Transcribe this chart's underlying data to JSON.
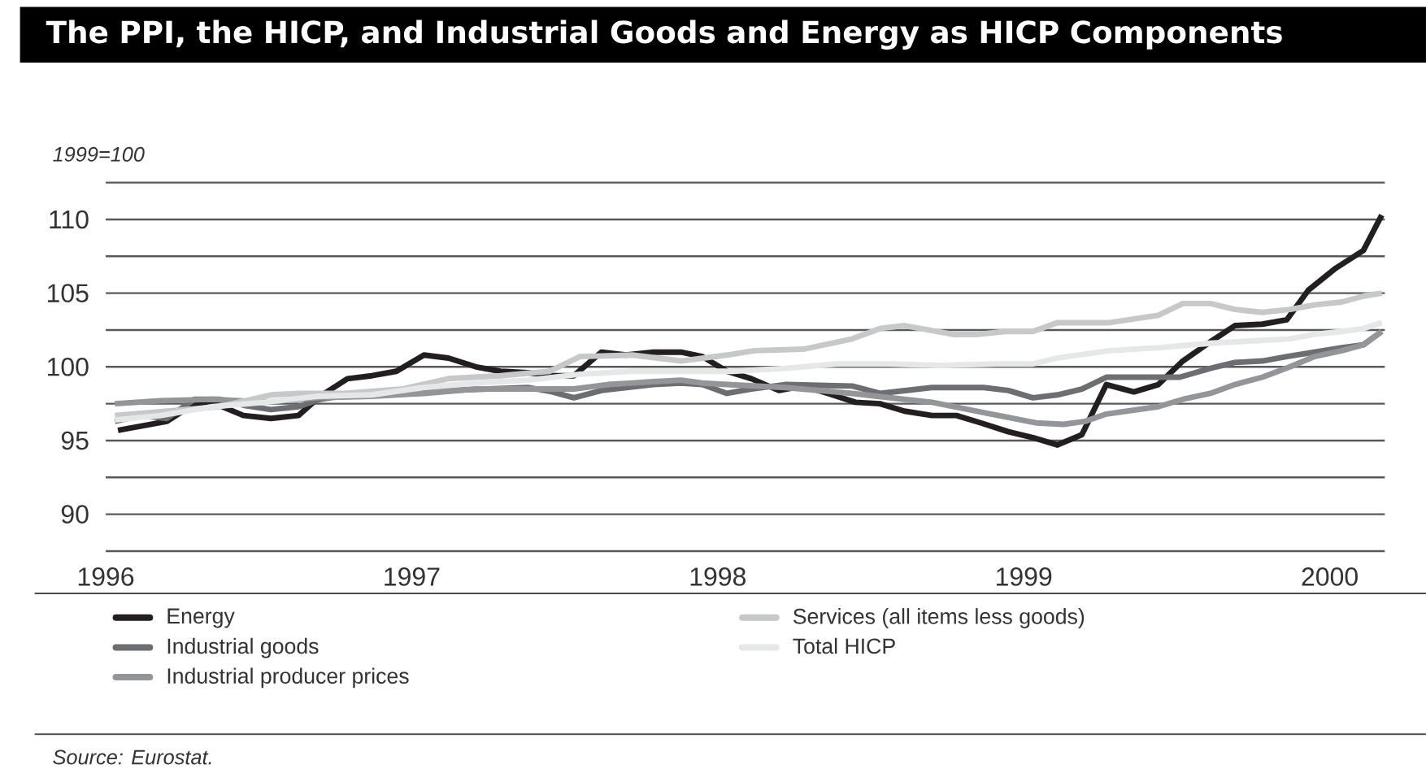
{
  "chart_data": {
    "type": "line",
    "title": "The PPI, the HICP, and Industrial Goods and Energy as HICP Components",
    "ylabel": "1999=100",
    "xlim": [
      1996,
      2000.18
    ],
    "ylim": [
      87.5,
      112.5
    ],
    "xticks": [
      1996,
      1997,
      1998,
      1999,
      2000
    ],
    "yticks": [
      {
        "value": 87.5,
        "label": null
      },
      90,
      {
        "value": 92.5,
        "label": null
      },
      95,
      {
        "value": 97.5,
        "label": null
      },
      100,
      {
        "value": 102.5,
        "label": null
      },
      105,
      {
        "value": 107.5,
        "label": null
      },
      110,
      {
        "value": 112.5,
        "label": null
      }
    ],
    "grid": "y",
    "legend": "bottom",
    "annotations": [
      "Source: Eurostat."
    ],
    "series": [
      {
        "name": "Energy",
        "color": "#231f20",
        "x": [
          1996.04,
          1996.2,
          1996.29,
          1996.37,
          1996.45,
          1996.54,
          1996.63,
          1996.7,
          1996.79,
          1996.87,
          1996.95,
          1997.04,
          1997.12,
          1997.21,
          1997.29,
          1997.38,
          1997.46,
          1997.53,
          1997.62,
          1997.7,
          1997.79,
          1997.88,
          1997.95,
          1998.03,
          1998.11,
          1998.2,
          1998.28,
          1998.36,
          1998.45,
          1998.53,
          1998.61,
          1998.7,
          1998.78,
          1998.86,
          1998.95,
          1999.03,
          1999.11,
          1999.19,
          1999.27,
          1999.36,
          1999.44,
          1999.52,
          1999.61,
          1999.69,
          1999.78,
          1999.86,
          1999.93,
          2000.02,
          2000.11,
          2000.17
        ],
        "values": [
          95.7,
          96.3,
          97.5,
          97.4,
          96.7,
          96.5,
          96.7,
          98.0,
          99.2,
          99.4,
          99.7,
          100.8,
          100.6,
          100.0,
          99.7,
          99.6,
          99.4,
          99.4,
          101.0,
          100.8,
          101.0,
          101.0,
          100.7,
          99.7,
          99.2,
          98.4,
          98.7,
          98.2,
          97.6,
          97.5,
          97.0,
          96.7,
          96.7,
          96.2,
          95.6,
          95.2,
          94.7,
          95.4,
          98.8,
          98.3,
          98.8,
          100.4,
          101.7,
          102.8,
          102.9,
          103.2,
          105.2,
          106.7,
          107.9,
          110.3
        ]
      },
      {
        "name": "Industrial goods",
        "color": "#6d6e71",
        "x": [
          1996.03,
          1996.11,
          1996.2,
          1996.29,
          1996.37,
          1996.45,
          1996.54,
          1996.63,
          1996.7,
          1996.79,
          1996.97,
          1997.12,
          1997.38,
          1997.46,
          1997.53,
          1997.62,
          1997.79,
          1997.88,
          1997.95,
          1998.03,
          1998.11,
          1998.22,
          1998.44,
          1998.53,
          1998.7,
          1998.79,
          1998.87,
          1998.95,
          1999.03,
          1999.11,
          1999.19,
          1999.27,
          1999.36,
          1999.51,
          1999.61,
          1999.69,
          1999.78,
          1999.86,
          1999.95,
          2000.04,
          2000.11,
          2000.17
        ],
        "values": [
          96.3,
          96.7,
          96.5,
          97.8,
          97.8,
          97.4,
          97.1,
          97.3,
          97.8,
          98.1,
          98.2,
          98.4,
          98.6,
          98.3,
          97.9,
          98.4,
          98.8,
          98.9,
          98.8,
          98.2,
          98.5,
          98.8,
          98.7,
          98.2,
          98.6,
          98.6,
          98.6,
          98.4,
          97.9,
          98.1,
          98.5,
          99.3,
          99.3,
          99.3,
          99.9,
          100.3,
          100.4,
          100.7,
          101.0,
          101.3,
          101.5,
          102.4
        ]
      },
      {
        "name": "Industrial producer prices",
        "color": "#939598",
        "x": [
          1996.03,
          1996.18,
          1996.35,
          1996.52,
          1996.69,
          1996.87,
          1997.04,
          1997.21,
          1997.38,
          1997.53,
          1997.64,
          1997.79,
          1997.88,
          1997.95,
          1998.03,
          1998.22,
          1998.44,
          1998.61,
          1998.7,
          1998.87,
          1999.04,
          1999.13,
          1999.2,
          1999.27,
          1999.44,
          1999.52,
          1999.61,
          1999.69,
          1999.78,
          1999.87,
          1999.95,
          2000.04,
          2000.11,
          2000.17
        ],
        "values": [
          97.5,
          97.7,
          97.8,
          97.6,
          97.9,
          98.0,
          98.2,
          98.5,
          98.5,
          98.5,
          98.8,
          99.0,
          99.1,
          98.9,
          98.8,
          98.6,
          98.2,
          97.8,
          97.6,
          96.9,
          96.2,
          96.1,
          96.3,
          96.8,
          97.3,
          97.8,
          98.2,
          98.8,
          99.3,
          100.0,
          100.7,
          101.1,
          101.5,
          102.4
        ]
      },
      {
        "name": "Services (all items less goods)",
        "color": "#c7c8ca",
        "x": [
          1996.03,
          1996.2,
          1996.37,
          1996.54,
          1996.63,
          1996.78,
          1996.97,
          1997.12,
          1997.29,
          1997.45,
          1997.55,
          1997.72,
          1997.88,
          1998.03,
          1998.12,
          1998.28,
          1998.44,
          1998.53,
          1998.61,
          1998.77,
          1998.85,
          1998.94,
          1999.03,
          1999.11,
          1999.28,
          1999.44,
          1999.52,
          1999.61,
          1999.69,
          1999.78,
          1999.87,
          1999.95,
          2000.04,
          2000.11,
          2000.17
        ],
        "values": [
          96.7,
          97.0,
          97.3,
          98.1,
          98.2,
          98.2,
          98.5,
          99.2,
          99.4,
          99.7,
          100.7,
          100.8,
          100.4,
          100.8,
          101.1,
          101.2,
          101.9,
          102.6,
          102.8,
          102.2,
          102.2,
          102.4,
          102.4,
          103.0,
          103.0,
          103.5,
          104.3,
          104.3,
          103.9,
          103.7,
          103.9,
          104.2,
          104.4,
          104.8,
          105.0
        ]
      },
      {
        "name": "Total HICP",
        "color": "#e6e7e8",
        "x": [
          1996.03,
          1996.18,
          1996.35,
          1996.52,
          1996.69,
          1996.87,
          1997.04,
          1997.21,
          1997.38,
          1997.55,
          1997.72,
          1997.88,
          1998.05,
          1998.22,
          1998.39,
          1998.56,
          1998.73,
          1998.91,
          1999.03,
          1999.11,
          1999.28,
          1999.44,
          1999.61,
          1999.78,
          1999.87,
          1999.95,
          2000.04,
          2000.11,
          2000.17
        ],
        "values": [
          96.4,
          96.7,
          97.3,
          97.6,
          98.0,
          98.1,
          98.6,
          98.9,
          99.1,
          99.5,
          99.7,
          99.7,
          99.7,
          99.9,
          100.2,
          100.2,
          100.1,
          100.2,
          100.2,
          100.6,
          101.1,
          101.3,
          101.6,
          101.8,
          101.9,
          102.2,
          102.4,
          102.6,
          103.0
        ]
      }
    ]
  }
}
